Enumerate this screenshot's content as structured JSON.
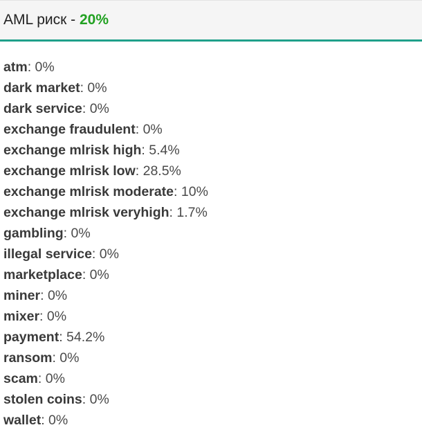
{
  "header": {
    "title_prefix": "AML риск - ",
    "risk_value": "20%",
    "risk_value_color": "#21a121",
    "accent_color": "#1fa08a"
  },
  "risks": [
    {
      "name": "atm",
      "value": "0%"
    },
    {
      "name": "dark market",
      "value": "0%"
    },
    {
      "name": "dark service",
      "value": "0%"
    },
    {
      "name": "exchange fraudulent",
      "value": "0%"
    },
    {
      "name": "exchange mlrisk high",
      "value": "5.4%"
    },
    {
      "name": "exchange mlrisk low",
      "value": "28.5%"
    },
    {
      "name": "exchange mlrisk moderate",
      "value": "10%"
    },
    {
      "name": "exchange mlrisk veryhigh",
      "value": "1.7%"
    },
    {
      "name": "gambling",
      "value": "0%"
    },
    {
      "name": "illegal service",
      "value": "0%"
    },
    {
      "name": "marketplace",
      "value": "0%"
    },
    {
      "name": "miner",
      "value": "0%"
    },
    {
      "name": "mixer",
      "value": "0%"
    },
    {
      "name": "payment",
      "value": "54.2%"
    },
    {
      "name": "ransom",
      "value": "0%"
    },
    {
      "name": "scam",
      "value": "0%"
    },
    {
      "name": "stolen coins",
      "value": "0%"
    },
    {
      "name": "wallet",
      "value": "0%"
    }
  ]
}
